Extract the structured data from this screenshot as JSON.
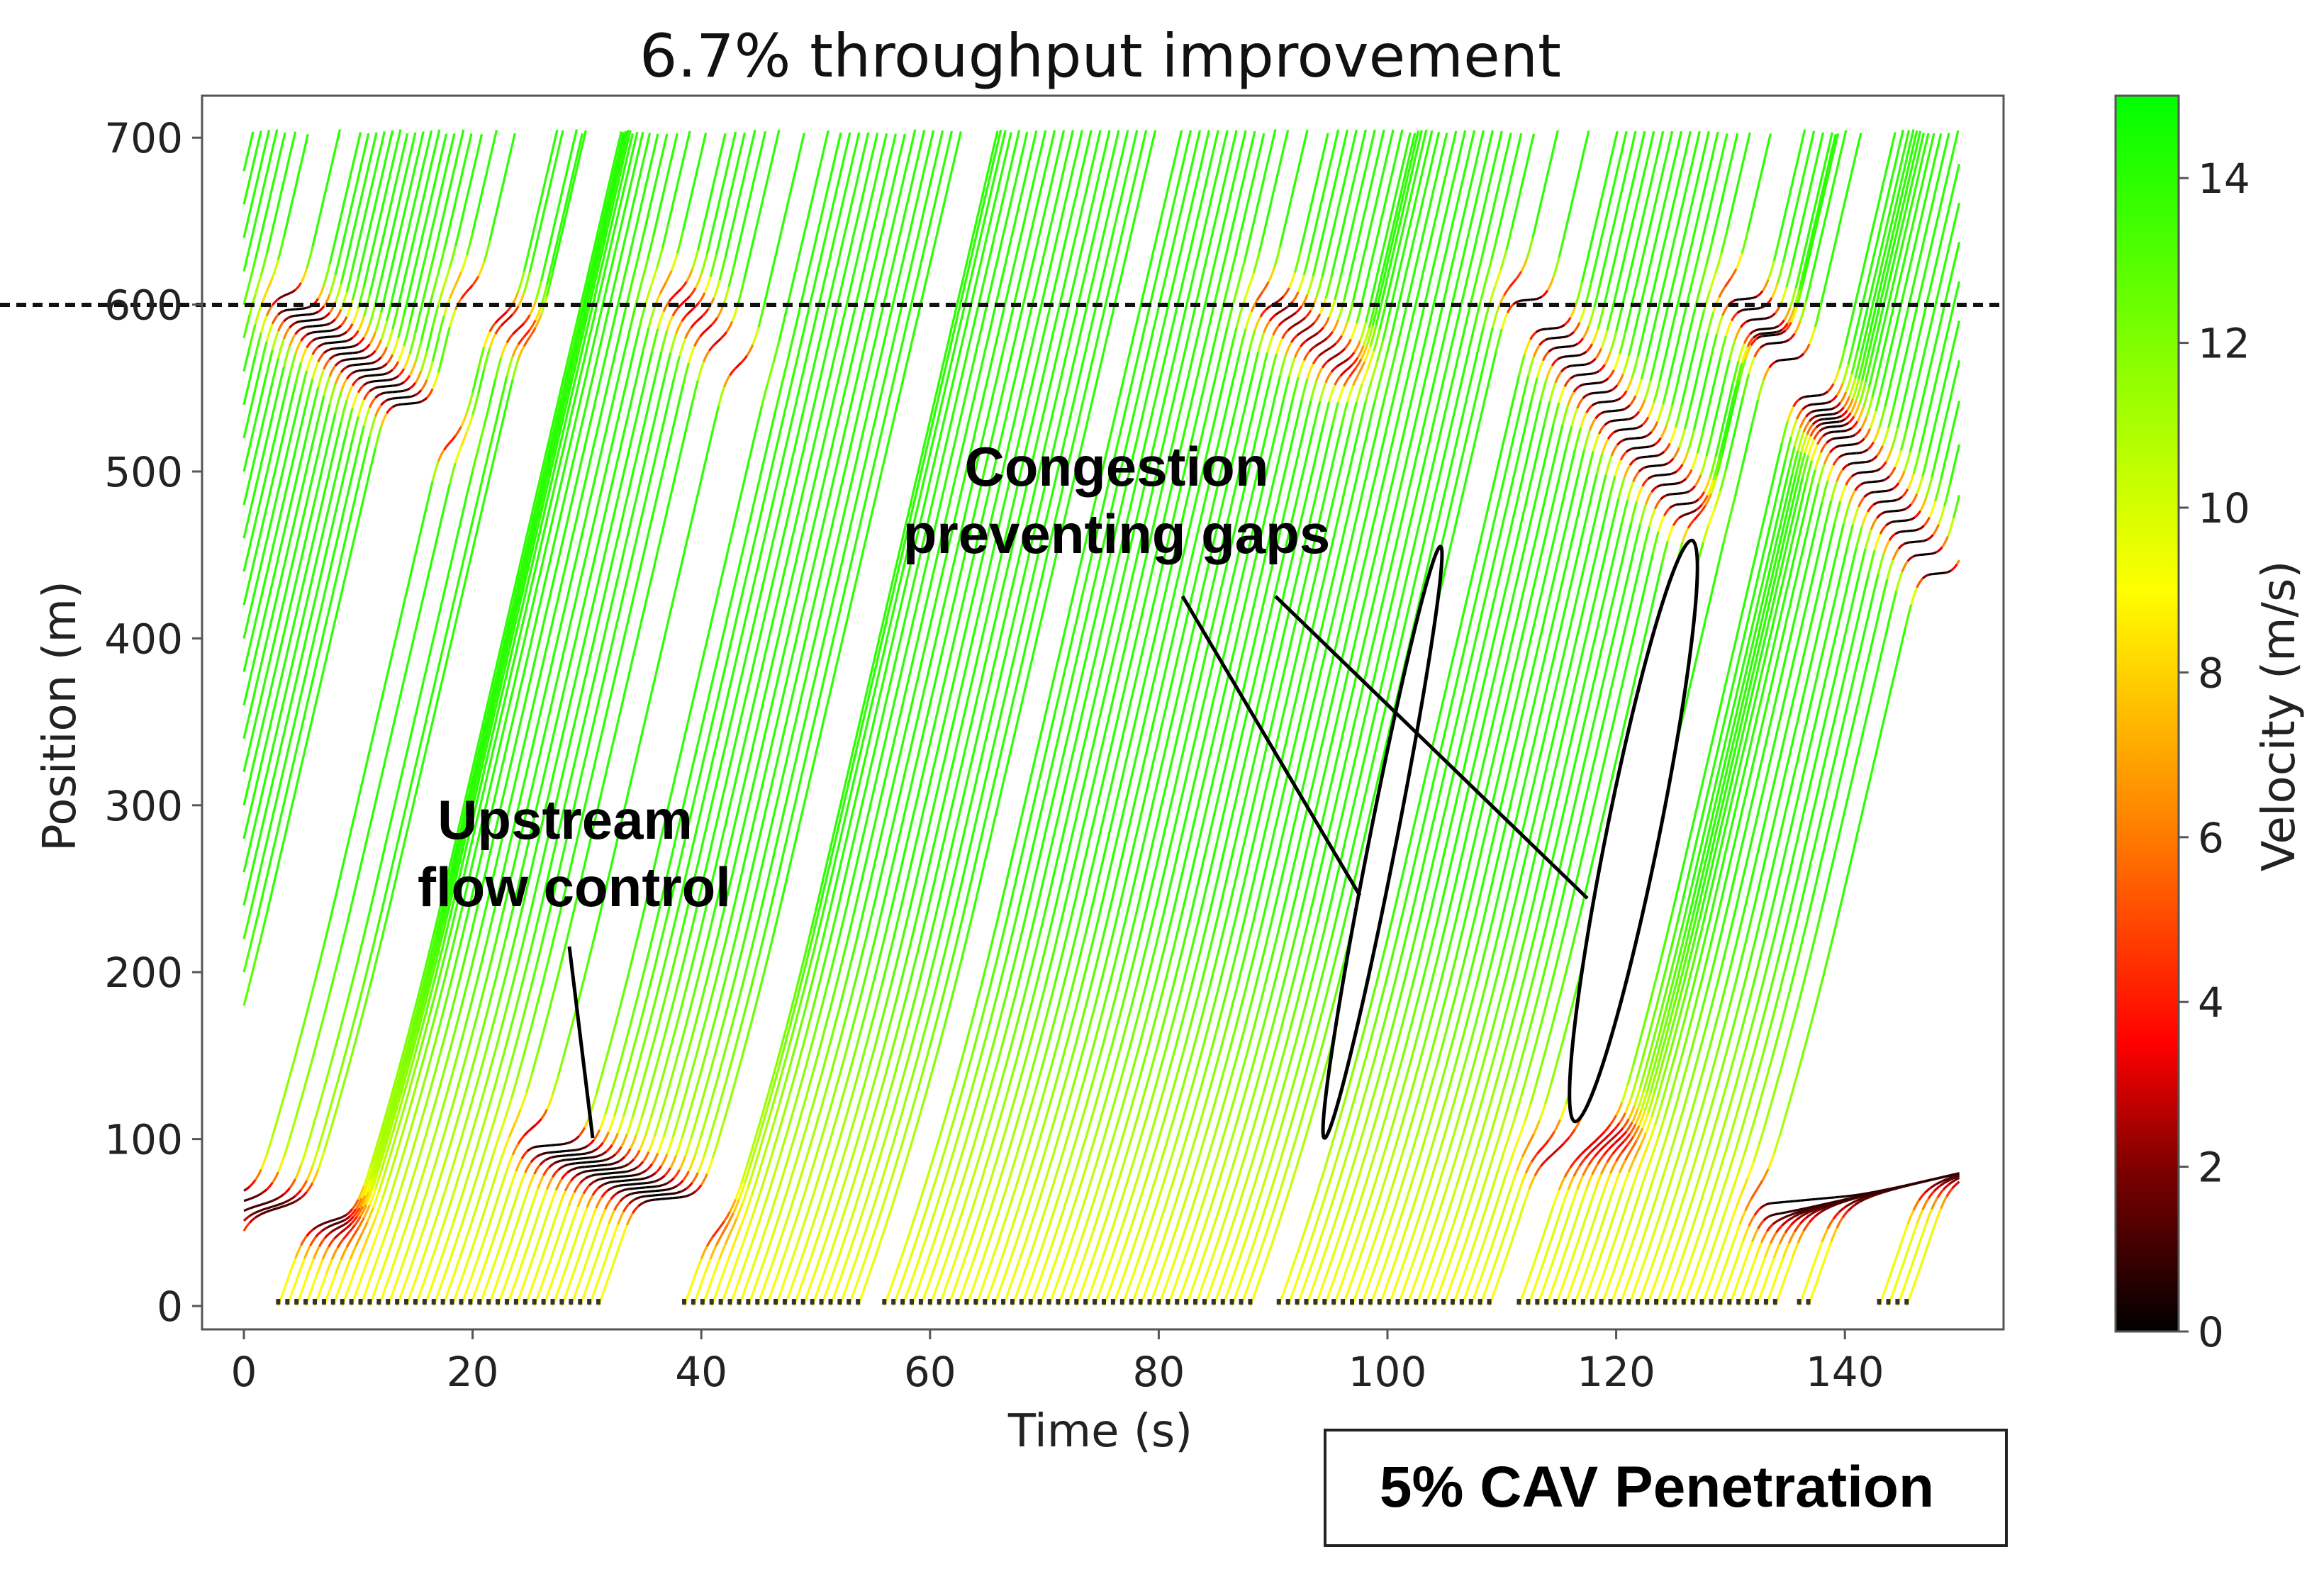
{
  "chart_data": {
    "type": "trajectory",
    "title": "6.7% throughput improvement",
    "xlabel": "Time (s)",
    "ylabel": "Position (m)",
    "xlim": [
      -3.7,
      153.9
    ],
    "ylim": [
      -14,
      725
    ],
    "xticks": [
      0,
      20,
      40,
      60,
      80,
      100,
      120,
      140
    ],
    "yticks": [
      0,
      100,
      200,
      300,
      400,
      500,
      600,
      700
    ],
    "grid": false,
    "reference_line": {
      "y": 600,
      "style": "dashed",
      "color": "#000000"
    },
    "colorbar": {
      "label": "Velocity (m/s)",
      "range": [
        0,
        15
      ],
      "ticks": [
        0,
        2,
        4,
        6,
        8,
        10,
        12,
        14
      ],
      "colormap": [
        {
          "v": 0,
          "color": "#000000"
        },
        {
          "v": 2,
          "color": "#800000"
        },
        {
          "v": 3.5,
          "color": "#ff0000"
        },
        {
          "v": 6,
          "color": "#ff7a00"
        },
        {
          "v": 9,
          "color": "#ffff00"
        },
        {
          "v": 12,
          "color": "#7fff00"
        },
        {
          "v": 15,
          "color": "#00ff00"
        }
      ]
    },
    "free_flow_velocity": 14,
    "entry_windows_s": [
      [
        3,
        31
      ],
      [
        38.5,
        54
      ],
      [
        56,
        88.5
      ],
      [
        90.5,
        109.5
      ],
      [
        111.5,
        134
      ],
      [
        136,
        137.5
      ],
      [
        143,
        146
      ]
    ],
    "entry_headway_s": 0.8,
    "initial_positions_m": {
      "free_flow": [
        180,
        200,
        220,
        240,
        260,
        280,
        300,
        320,
        340,
        360,
        380,
        400,
        420,
        440,
        460,
        480,
        500,
        520,
        540,
        560,
        580,
        600,
        620,
        640,
        660,
        680
      ],
      "congested": [
        45,
        51,
        57,
        63,
        69
      ]
    },
    "congestion_waves": [
      {
        "from": [
          4,
          600
        ],
        "to": [
          17,
          525
        ],
        "min_velocity": 0
      },
      {
        "from": [
          20,
          605
        ],
        "to": [
          24,
          585
        ],
        "min_velocity": 3
      },
      {
        "from": [
          38,
          605
        ],
        "to": [
          43,
          565
        ],
        "min_velocity": 3
      },
      {
        "from": [
          26,
          98
        ],
        "to": [
          40,
          55
        ],
        "min_velocity": 0
      },
      {
        "from": [
          0,
          62
        ],
        "to": [
          8,
          52
        ],
        "min_velocity": 1
      },
      {
        "from": [
          90,
          600
        ],
        "to": [
          96,
          565
        ],
        "min_velocity": 2
      },
      {
        "from": [
          112,
          605
        ],
        "to": [
          126,
          480
        ],
        "min_velocity": 0
      },
      {
        "from": [
          131,
          605
        ],
        "to": [
          149,
          430
        ],
        "min_velocity": 0
      },
      {
        "from": [
          134,
          60
        ],
        "to": [
          150,
          85
        ],
        "min_velocity": 0
      },
      {
        "from": [
          114,
          90
        ],
        "to": [
          120,
          100
        ],
        "min_velocity": 3
      }
    ],
    "annotations": [
      {
        "lines": [
          "Congestion",
          "preventing gaps"
        ]
      },
      {
        "lines": [
          "Upstream",
          "flow control"
        ]
      }
    ],
    "caption_box": "5% CAV Penetration"
  }
}
